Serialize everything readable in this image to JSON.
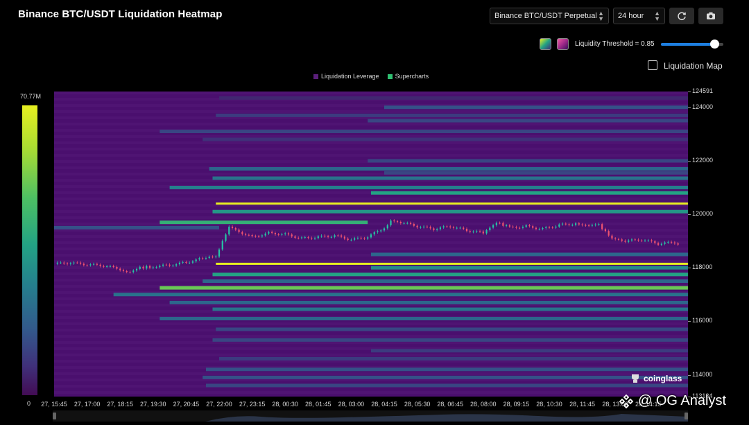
{
  "header": {
    "title": "Binance BTC/USDT Liquidation Heatmap",
    "pair_select": "Binance BTC/USDT Perpetual",
    "range_select": "24 hour",
    "refresh_icon": "refresh-icon",
    "camera_icon": "camera-icon"
  },
  "controls": {
    "threshold_label": "Liquidity Threshold = 0.85",
    "threshold_value": 0.85,
    "liquidation_map_label": "Liquidation Map",
    "liquidation_map_checked": false,
    "palette_swatch_1": "green-gradient-swatch",
    "palette_swatch_2": "pink-gradient-swatch"
  },
  "legend": {
    "item1": "Liquidation Leverage",
    "item1_color": "#5a1f7a",
    "item2": "Supercharts",
    "item2_color": "#2fbf71"
  },
  "colorbar": {
    "max_label": "70.77M",
    "min_label": "0"
  },
  "chart_data": {
    "type": "heatmap",
    "title": "Binance BTC/USDT Liquidation Heatmap",
    "y_axis": {
      "min": 113184,
      "max": 124591,
      "ticks": [
        124591,
        124000,
        122000,
        120000,
        118000,
        116000,
        114000,
        113184
      ]
    },
    "x_axis": {
      "ticks": [
        "27, 15:45",
        "27, 17:00",
        "27, 18:15",
        "27, 19:30",
        "27, 20:45",
        "27, 22:00",
        "27, 23:15",
        "28, 00:30",
        "28, 01:45",
        "28, 03:00",
        "28, 04:15",
        "28, 05:30",
        "28, 06:45",
        "28, 08:00",
        "28, 09:15",
        "28, 10:30",
        "28, 11:45",
        "28, 13:00",
        "28, 14:15"
      ]
    },
    "price_path": [
      [
        0,
        118150
      ],
      [
        0.5,
        118180
      ],
      [
        1,
        118120
      ],
      [
        1.5,
        118080
      ],
      [
        2,
        117950
      ],
      [
        2.3,
        117850
      ],
      [
        2.6,
        118000
      ],
      [
        3,
        118050
      ],
      [
        3.5,
        118100
      ],
      [
        4,
        118200
      ],
      [
        4.5,
        118350
      ],
      [
        4.9,
        118450
      ],
      [
        5.1,
        119000
      ],
      [
        5.3,
        119500
      ],
      [
        5.5,
        119400
      ],
      [
        6,
        119150
      ],
      [
        6.5,
        119300
      ],
      [
        7,
        119250
      ],
      [
        7.5,
        119100
      ],
      [
        8,
        119150
      ],
      [
        8.5,
        119200
      ],
      [
        9,
        119050
      ],
      [
        9.5,
        119150
      ],
      [
        10,
        119500
      ],
      [
        10.2,
        119750
      ],
      [
        10.5,
        119700
      ],
      [
        11,
        119550
      ],
      [
        11.5,
        119450
      ],
      [
        12,
        119550
      ],
      [
        12.5,
        119400
      ],
      [
        13,
        119300
      ],
      [
        13.4,
        119700
      ],
      [
        13.8,
        119500
      ],
      [
        14.3,
        119550
      ],
      [
        14.8,
        119450
      ],
      [
        15.3,
        119600
      ],
      [
        15.8,
        119650
      ],
      [
        16.2,
        119550
      ],
      [
        16.5,
        119600
      ],
      [
        16.9,
        119100
      ],
      [
        17.3,
        119000
      ],
      [
        17.8,
        119050
      ],
      [
        18.3,
        118900
      ],
      [
        18.8,
        118950
      ],
      [
        19,
        118850
      ]
    ],
    "bands": [
      {
        "price": 124350,
        "start": 5.0,
        "end": 19.2,
        "intensity": 0.15
      },
      {
        "price": 124000,
        "start": 10.0,
        "end": 19.2,
        "intensity": 0.35
      },
      {
        "price": 123700,
        "start": 4.9,
        "end": 19.2,
        "intensity": 0.25
      },
      {
        "price": 123500,
        "start": 9.5,
        "end": 19.2,
        "intensity": 0.3
      },
      {
        "price": 123100,
        "start": 3.2,
        "end": 19.2,
        "intensity": 0.3
      },
      {
        "price": 122800,
        "start": 4.5,
        "end": 19.2,
        "intensity": 0.2
      },
      {
        "price": 122000,
        "start": 9.5,
        "end": 19.2,
        "intensity": 0.3
      },
      {
        "price": 121700,
        "start": 4.7,
        "end": 19.2,
        "intensity": 0.45
      },
      {
        "price": 121550,
        "start": 10,
        "end": 19.2,
        "intensity": 0.3
      },
      {
        "price": 121350,
        "start": 4.8,
        "end": 19.2,
        "intensity": 0.5
      },
      {
        "price": 121000,
        "start": 3.5,
        "end": 19.2,
        "intensity": 0.55
      },
      {
        "price": 120800,
        "start": 9.6,
        "end": 19.2,
        "intensity": 0.7
      },
      {
        "price": 120400,
        "start": 4.9,
        "end": 19.2,
        "intensity": 1.0
      },
      {
        "price": 120100,
        "start": 4.8,
        "end": 19.2,
        "intensity": 0.65
      },
      {
        "price": 119700,
        "start": 3.2,
        "end": 9.5,
        "intensity": 0.75
      },
      {
        "price": 119500,
        "start": 0,
        "end": 5,
        "intensity": 0.35
      },
      {
        "price": 118500,
        "start": 9.6,
        "end": 19.2,
        "intensity": 0.45
      },
      {
        "price": 118150,
        "start": 4.9,
        "end": 19.2,
        "intensity": 1.0
      },
      {
        "price": 118000,
        "start": 9.6,
        "end": 19.2,
        "intensity": 0.6
      },
      {
        "price": 117750,
        "start": 4.8,
        "end": 19.2,
        "intensity": 0.7
      },
      {
        "price": 117500,
        "start": 4.5,
        "end": 19.2,
        "intensity": 0.45
      },
      {
        "price": 117250,
        "start": 3.2,
        "end": 19.2,
        "intensity": 0.85
      },
      {
        "price": 117000,
        "start": 1.8,
        "end": 19.2,
        "intensity": 0.5
      },
      {
        "price": 116700,
        "start": 3.5,
        "end": 19.2,
        "intensity": 0.45
      },
      {
        "price": 116450,
        "start": 4.8,
        "end": 19.2,
        "intensity": 0.5
      },
      {
        "price": 116100,
        "start": 3.2,
        "end": 19.2,
        "intensity": 0.45
      },
      {
        "price": 115700,
        "start": 4.9,
        "end": 19.2,
        "intensity": 0.3
      },
      {
        "price": 115300,
        "start": 4.8,
        "end": 19.2,
        "intensity": 0.3
      },
      {
        "price": 114900,
        "start": 9.6,
        "end": 19.2,
        "intensity": 0.25
      },
      {
        "price": 114600,
        "start": 5.0,
        "end": 19.2,
        "intensity": 0.25
      },
      {
        "price": 114200,
        "start": 4.6,
        "end": 19.2,
        "intensity": 0.35
      },
      {
        "price": 113900,
        "start": 4.5,
        "end": 19.2,
        "intensity": 0.35
      },
      {
        "price": 113600,
        "start": 4.6,
        "end": 19.2,
        "intensity": 0.3
      }
    ]
  },
  "branding": {
    "logo_text": "coinglass",
    "watermark": "@ OG Analyst"
  }
}
